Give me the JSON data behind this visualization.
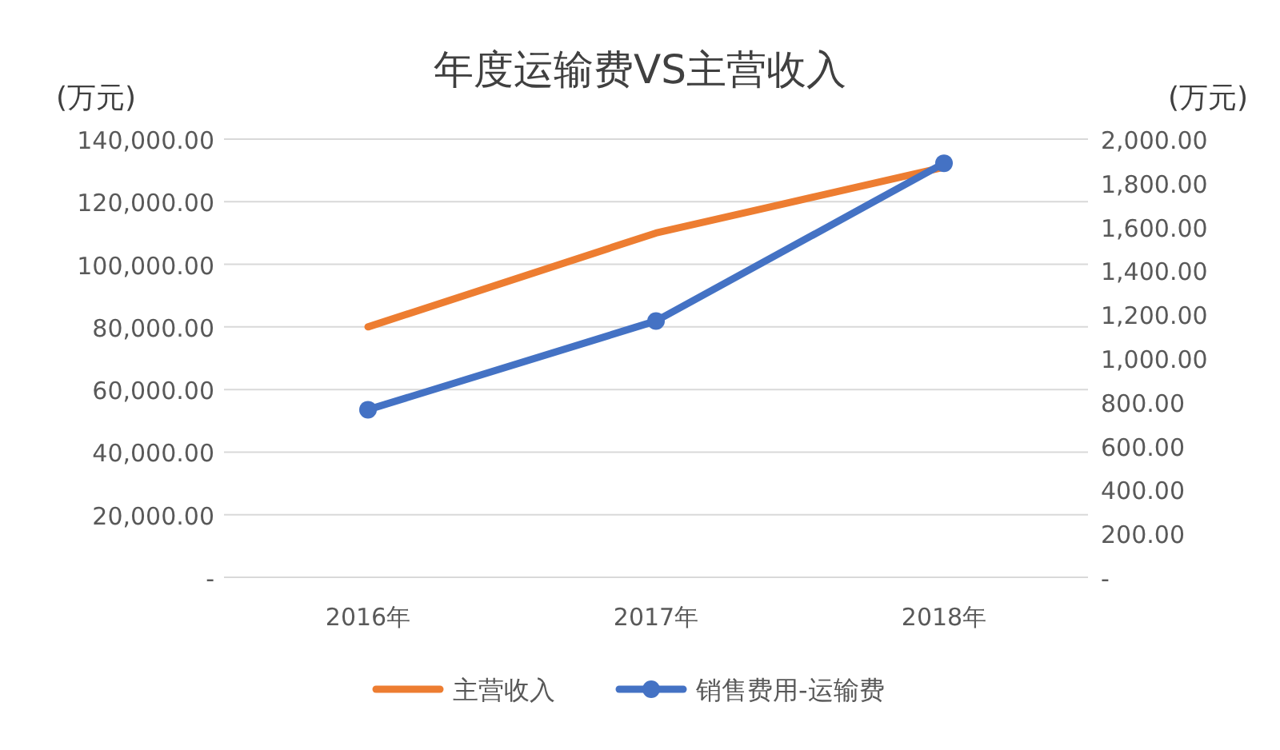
{
  "chart_data": {
    "type": "line",
    "title": "年度运输费VS主营收入",
    "ylabel": "(万元)",
    "y2label": "(万元)",
    "categories": [
      "2016年",
      "2017年",
      "2018年"
    ],
    "series": [
      {
        "name": "主营收入",
        "color": "#ed7d31",
        "values": [
          80000,
          110000,
          131000
        ],
        "marker": "none"
      },
      {
        "name": "销售费用-运输费",
        "color": "#4472c4",
        "values": [
          765,
          1170,
          1890
        ],
        "axis": "y2",
        "marker": "circle"
      }
    ],
    "ylim": [
      0,
      140000
    ],
    "yticks": [
      {
        "value": 0,
        "label": "-"
      },
      {
        "value": 20000,
        "label": "20,000.00"
      },
      {
        "value": 40000,
        "label": "40,000.00"
      },
      {
        "value": 60000,
        "label": "60,000.00"
      },
      {
        "value": 80000,
        "label": "80,000.00"
      },
      {
        "value": 100000,
        "label": "100,000.00"
      },
      {
        "value": 120000,
        "label": "120,000.00"
      },
      {
        "value": 140000,
        "label": "140,000.00"
      }
    ],
    "y2lim": [
      0,
      2000
    ],
    "y2ticks": [
      {
        "value": 0,
        "label": "-"
      },
      {
        "value": 200,
        "label": "200.00"
      },
      {
        "value": 400,
        "label": "400.00"
      },
      {
        "value": 600,
        "label": "600.00"
      },
      {
        "value": 800,
        "label": "800.00"
      },
      {
        "value": 1000,
        "label": "1,000.00"
      },
      {
        "value": 1200,
        "label": "1,200.00"
      },
      {
        "value": 1400,
        "label": "1,400.00"
      },
      {
        "value": 1600,
        "label": "1,600.00"
      },
      {
        "value": 1800,
        "label": "1,800.00"
      },
      {
        "value": 2000,
        "label": "2,000.00"
      }
    ],
    "grid": "y",
    "legend": "bottom",
    "line_style": "solid"
  }
}
